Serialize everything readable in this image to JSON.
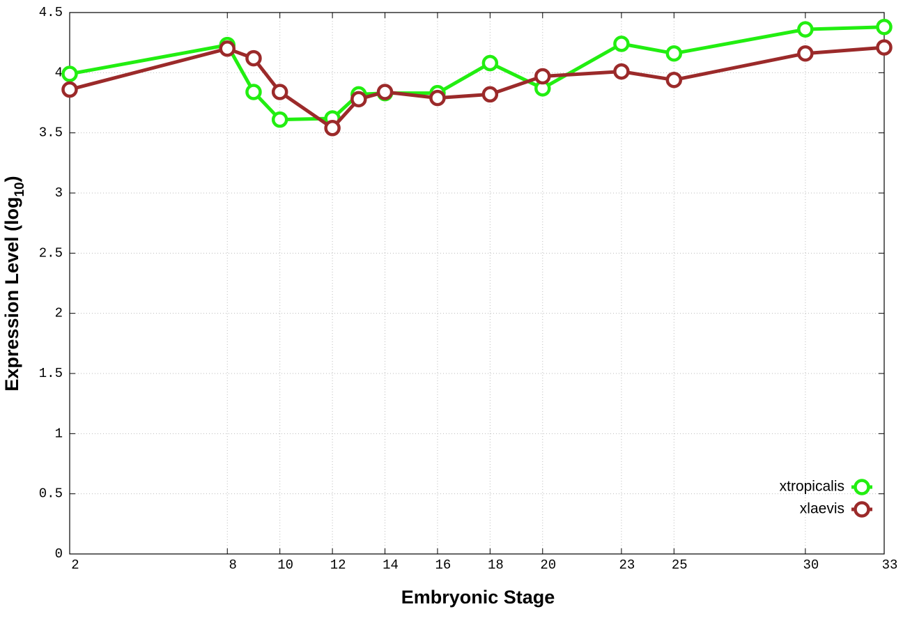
{
  "chart_data": {
    "type": "line",
    "x_label": "Embryonic Stage",
    "y_label": {
      "text": "Expression Level (log",
      "subscript": "10",
      "suffix": ")"
    },
    "x": [
      2,
      8,
      9,
      10,
      12,
      13,
      14,
      16,
      18,
      20,
      23,
      25,
      30,
      33
    ],
    "series": [
      {
        "name": "xtropicalis",
        "color": "#22ee11",
        "values": [
          3.99,
          4.23,
          3.84,
          3.61,
          3.62,
          3.82,
          3.83,
          3.83,
          4.08,
          3.87,
          4.24,
          4.16,
          4.36,
          4.38
        ]
      },
      {
        "name": "xlaevis",
        "color": "#9b2a2a",
        "values": [
          3.86,
          4.2,
          4.12,
          3.84,
          3.54,
          3.78,
          3.84,
          3.79,
          3.82,
          3.97,
          4.01,
          3.94,
          4.16,
          4.21
        ]
      }
    ],
    "xlim": [
      2,
      33
    ],
    "ylim": [
      0,
      4.5
    ],
    "xticks": [
      2,
      8,
      10,
      12,
      14,
      16,
      18,
      20,
      23,
      25,
      30,
      33
    ],
    "yticks": [
      0,
      0.5,
      1,
      1.5,
      2,
      2.5,
      3,
      3.5,
      4,
      4.5
    ],
    "grid": true,
    "legend": "lower right"
  }
}
